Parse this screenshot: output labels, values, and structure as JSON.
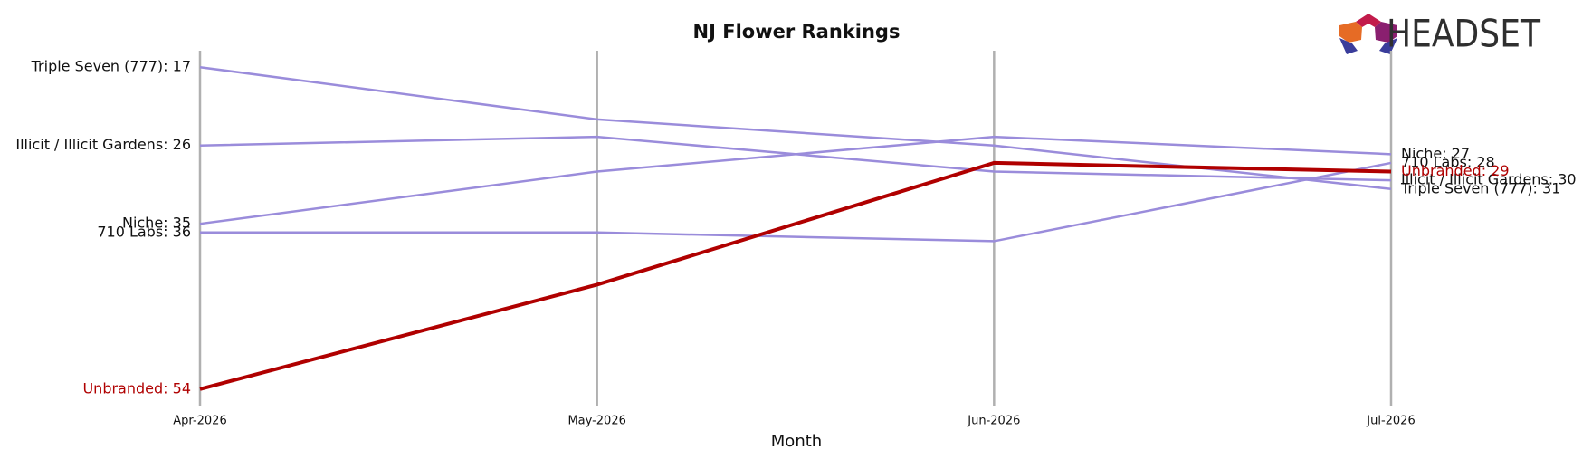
{
  "chart_data": {
    "type": "bump",
    "title": "NJ Flower Rankings",
    "x_label": "Month",
    "logo_text": "HEADSET",
    "categories": [
      "Apr-2026",
      "May-2026",
      "Jun-2026",
      "Jul-2026"
    ],
    "ylim": [
      15,
      56
    ],
    "y_inverted": true,
    "series": [
      {
        "name": "Triple Seven (777)",
        "color": "#9a8cdb",
        "values": [
          17,
          23,
          26,
          31
        ],
        "value_labels": [
          "Triple Seven (777): 17",
          null,
          null,
          "Triple Seven (777): 31"
        ]
      },
      {
        "name": "Illicit / Illicit Gardens",
        "color": "#9a8cdb",
        "values": [
          26,
          25,
          29,
          30
        ],
        "value_labels": [
          "Illicit / Illicit Gardens: 26",
          null,
          null,
          "Illicit / Illicit Gardens: 30"
        ]
      },
      {
        "name": "Niche",
        "color": "#9a8cdb",
        "values": [
          35,
          29,
          25,
          27
        ],
        "value_labels": [
          "Niche: 35",
          null,
          null,
          "Niche: 27"
        ]
      },
      {
        "name": "710 Labs",
        "color": "#9a8cdb",
        "values": [
          36,
          36,
          37,
          28
        ],
        "value_labels": [
          "710 Labs: 36",
          null,
          null,
          "710 Labs: 28"
        ]
      },
      {
        "name": "Unbranded",
        "color": "#b00000",
        "highlight": true,
        "values": [
          54,
          42,
          28,
          29
        ],
        "value_labels": [
          "Unbranded: 54",
          null,
          null,
          "Unbranded: 29"
        ]
      }
    ]
  }
}
